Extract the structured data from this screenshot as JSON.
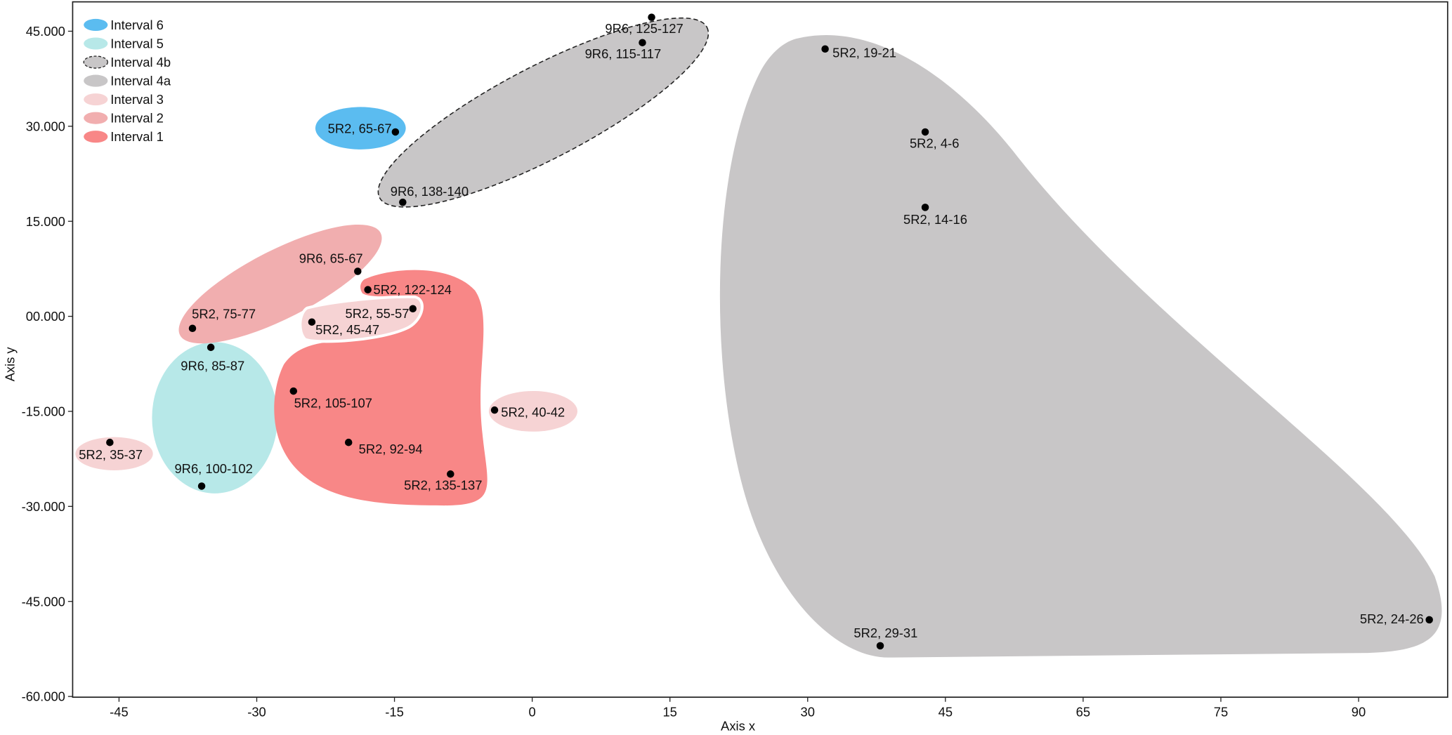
{
  "chart_data": {
    "type": "scatter",
    "title": "",
    "xlabel": "Axis x",
    "ylabel": "Axis y",
    "xlim": [
      -50,
      100
    ],
    "ylim": [
      -60,
      50
    ],
    "grid": false,
    "legend_placement": "top-left",
    "x_tick_labels": [
      "-45",
      "-30",
      "-15",
      "0",
      "15",
      "30",
      "45",
      "65",
      "75",
      "90"
    ],
    "y_ticks": [
      45,
      30,
      15,
      0,
      -15,
      -30,
      -45,
      -60
    ],
    "y_tick_labels": [
      "45.000",
      "30.000",
      "15.000",
      "00.000",
      "-15.000",
      "-30.000",
      "-45.000",
      "-60.000"
    ],
    "legend": [
      {
        "label": "Interval 6",
        "color": "#5bbcf0",
        "dashed": false
      },
      {
        "label": "Interval 5",
        "color": "#b7e8e8",
        "dashed": false
      },
      {
        "label": "Interval 4b",
        "color": "#c8c6c7",
        "dashed": true
      },
      {
        "label": "Interval 4a",
        "color": "#c8c6c7",
        "dashed": false
      },
      {
        "label": "Interval 3",
        "color": "#f6d3d4",
        "dashed": false
      },
      {
        "label": "Interval 2",
        "color": "#f1aeaf",
        "dashed": false
      },
      {
        "label": "Interval 1",
        "color": "#f88787",
        "dashed": false
      }
    ],
    "points": [
      {
        "label": "9R6, 125-127",
        "x": 13,
        "y": 47.2,
        "group": "Interval 4b"
      },
      {
        "label": "9R6, 115-117",
        "x": 12,
        "y": 43.2,
        "group": "Interval 4b"
      },
      {
        "label": "5R2, 19-21",
        "x": 31.9,
        "y": 42.2,
        "group": "Interval 4a"
      },
      {
        "label": "5R2, 65-67",
        "x": -14.9,
        "y": 29.1,
        "group": "Interval 6"
      },
      {
        "label": "5R2, 4-6",
        "x": 42.8,
        "y": 29.1,
        "group": "Interval 4a"
      },
      {
        "label": "9R6, 138-140",
        "x": -14.1,
        "y": 18.0,
        "group": "Interval 4b"
      },
      {
        "label": "5R2, 14-16",
        "x": 42.8,
        "y": 17.2,
        "group": "Interval 4a"
      },
      {
        "label": "9R6, 65-67",
        "x": -19.0,
        "y": 7.1,
        "group": "Interval 2"
      },
      {
        "label": "5R2, 122-124",
        "x": -17.9,
        "y": 4.2,
        "group": "Interval 1"
      },
      {
        "label": "5R2, 55-57",
        "x": -13.0,
        "y": 1.2,
        "group": "Interval 3"
      },
      {
        "label": "5R2, 45-47",
        "x": -24.0,
        "y": -0.9,
        "group": "Interval 3"
      },
      {
        "label": "5R2, 75-77",
        "x": -37.0,
        "y": -1.9,
        "group": "Interval 2"
      },
      {
        "label": "9R6, 85-87",
        "x": -35.0,
        "y": -4.9,
        "group": "Interval 5"
      },
      {
        "label": "5R2, 105-107",
        "x": -26.0,
        "y": -11.8,
        "group": "Interval 1"
      },
      {
        "label": "5R2, 40-42",
        "x": -4.1,
        "y": -14.8,
        "group": "Interval 3"
      },
      {
        "label": "5R2, 35-37",
        "x": -46.0,
        "y": -19.9,
        "group": "Interval 3"
      },
      {
        "label": "5R2, 92-94",
        "x": -20.0,
        "y": -19.9,
        "group": "Interval 1"
      },
      {
        "label": "5R2, 135-137",
        "x": -8.9,
        "y": -24.9,
        "group": "Interval 1"
      },
      {
        "label": "9R6, 100-102",
        "x": -36.0,
        "y": -26.8,
        "group": "Interval 5"
      },
      {
        "label": "5R2, 29-31",
        "x": 37.9,
        "y": -52.0,
        "group": "Interval 4a"
      },
      {
        "label": "5R2, 24-26",
        "x": 97.7,
        "y": -47.9,
        "group": "Interval 4a"
      }
    ]
  }
}
